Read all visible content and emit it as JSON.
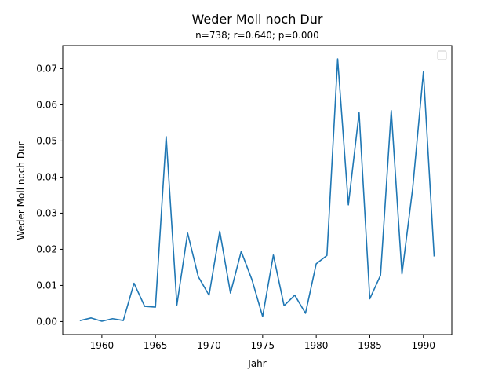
{
  "chart_data": {
    "type": "line",
    "title": "Weder Moll noch Dur",
    "subtitle": "n=738; r=0.640; p=0.000",
    "xlabel": "Jahr",
    "ylabel": "Weder Moll noch Dur",
    "xlim": [
      1956.35,
      1992.65
    ],
    "ylim": [
      -0.0036,
      0.0764
    ],
    "x_ticks": [
      1960,
      1965,
      1970,
      1975,
      1980,
      1985,
      1990
    ],
    "y_ticks": [
      0.0,
      0.01,
      0.02,
      0.03,
      0.04,
      0.05,
      0.06,
      0.07
    ],
    "y_tick_labels": [
      "0.00",
      "0.01",
      "0.02",
      "0.03",
      "0.04",
      "0.05",
      "0.06",
      "0.07"
    ],
    "grid": false,
    "legend": {
      "placement": "upper-right",
      "entries": []
    },
    "series": [
      {
        "color": "#1f77b4",
        "x": [
          1958,
          1959,
          1960,
          1961,
          1962,
          1963,
          1964,
          1965,
          1966,
          1967,
          1968,
          1969,
          1970,
          1971,
          1972,
          1973,
          1974,
          1975,
          1976,
          1977,
          1978,
          1979,
          1980,
          1981,
          1982,
          1983,
          1984,
          1985,
          1986,
          1987,
          1988,
          1989,
          1990,
          1991
        ],
        "values": [
          0.0003,
          0.001,
          0.0001,
          0.0008,
          0.0003,
          0.0106,
          0.0042,
          0.004,
          0.0512,
          0.0046,
          0.0245,
          0.0124,
          0.0073,
          0.025,
          0.0079,
          0.0194,
          0.0116,
          0.0014,
          0.0184,
          0.0044,
          0.0073,
          0.0023,
          0.016,
          0.0183,
          0.0727,
          0.0323,
          0.0578,
          0.0063,
          0.0128,
          0.0584,
          0.0132,
          0.0369,
          0.0691,
          0.0182
        ]
      }
    ]
  }
}
